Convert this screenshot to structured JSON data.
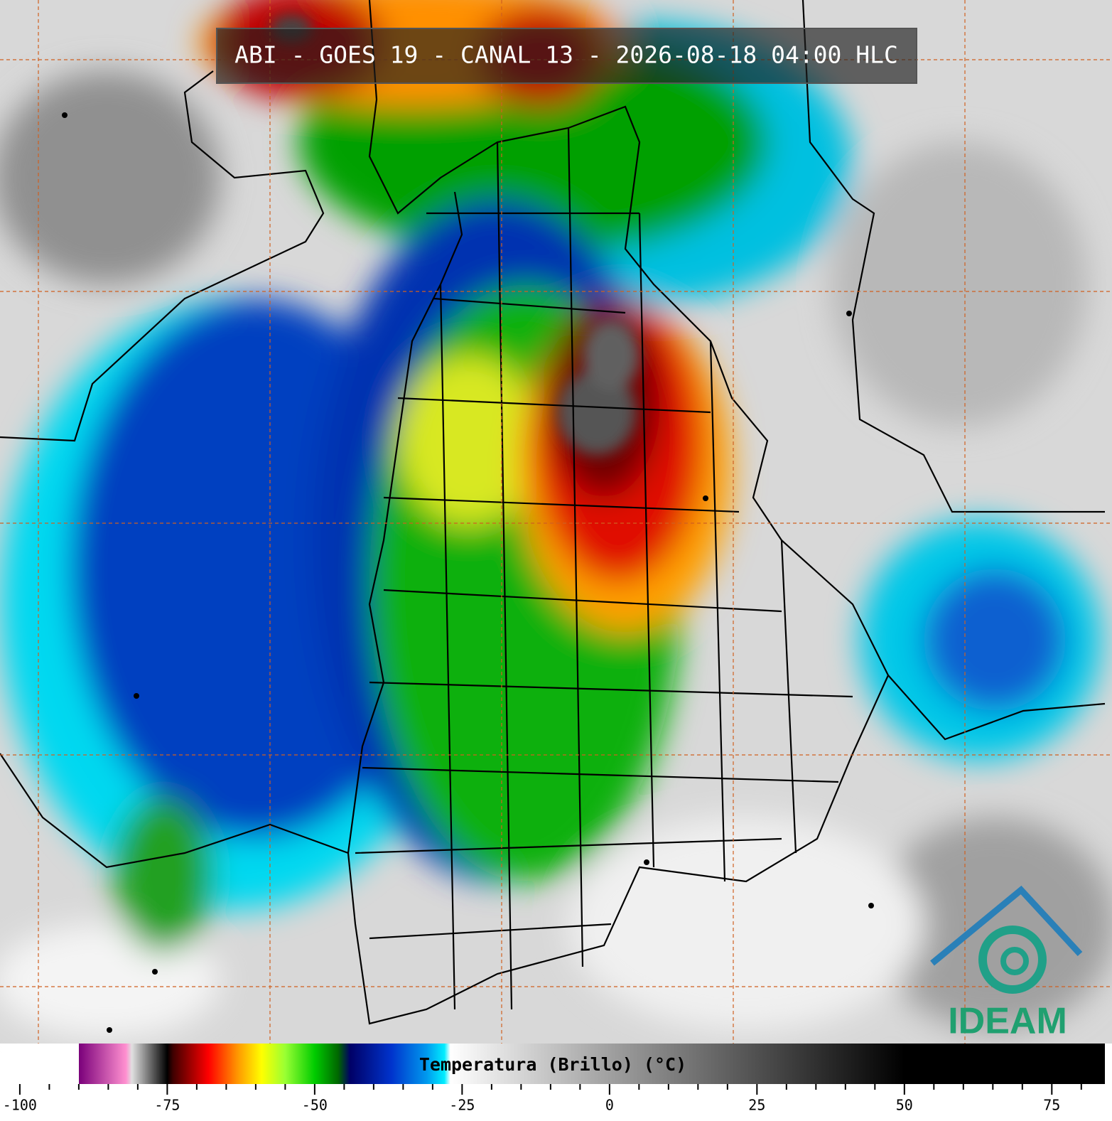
{
  "title": "ABI - GOES 19 - CANAL 13 - 2026-08-18 04:00 HLC",
  "logo": "IDEAM",
  "colorbar": {
    "label": "Temperatura (Brillo) (°C)",
    "lim": [
      -103,
      84
    ],
    "ticks": [
      -100,
      -75,
      -50,
      -25,
      0,
      25,
      50,
      75
    ],
    "minor_ticks": [
      -95,
      -90,
      -85,
      -80,
      -70,
      -65,
      -60,
      -55,
      -45,
      -40,
      -35,
      -30,
      -20,
      -15,
      -10,
      -5,
      5,
      10,
      15,
      20,
      30,
      35,
      40,
      45,
      55,
      60,
      65,
      70,
      80
    ],
    "palette": [
      {
        "value": -103,
        "color": "#ffffff"
      },
      {
        "value": -90,
        "color": "#ffffff"
      },
      {
        "value": -90,
        "color": "#7a007a"
      },
      {
        "value": -82,
        "color": "#ff90d0"
      },
      {
        "value": -81,
        "color": "#e0e0e0"
      },
      {
        "value": -75,
        "color": "#000000"
      },
      {
        "value": -74,
        "color": "#400000"
      },
      {
        "value": -68,
        "color": "#ff0000"
      },
      {
        "value": -63,
        "color": "#ff9900"
      },
      {
        "value": -59,
        "color": "#ffff00"
      },
      {
        "value": -55,
        "color": "#99ff33"
      },
      {
        "value": -50,
        "color": "#00cc00"
      },
      {
        "value": -46,
        "color": "#006600"
      },
      {
        "value": -44,
        "color": "#000066"
      },
      {
        "value": -37,
        "color": "#0033cc"
      },
      {
        "value": -31,
        "color": "#0099ee"
      },
      {
        "value": -28,
        "color": "#00eeff"
      },
      {
        "value": -27,
        "color": "#ffffff"
      },
      {
        "value": 0,
        "color": "#a0a0a0"
      },
      {
        "value": 40,
        "color": "#202020"
      },
      {
        "value": 50,
        "color": "#000000"
      },
      {
        "value": 84,
        "color": "#000000"
      }
    ]
  }
}
